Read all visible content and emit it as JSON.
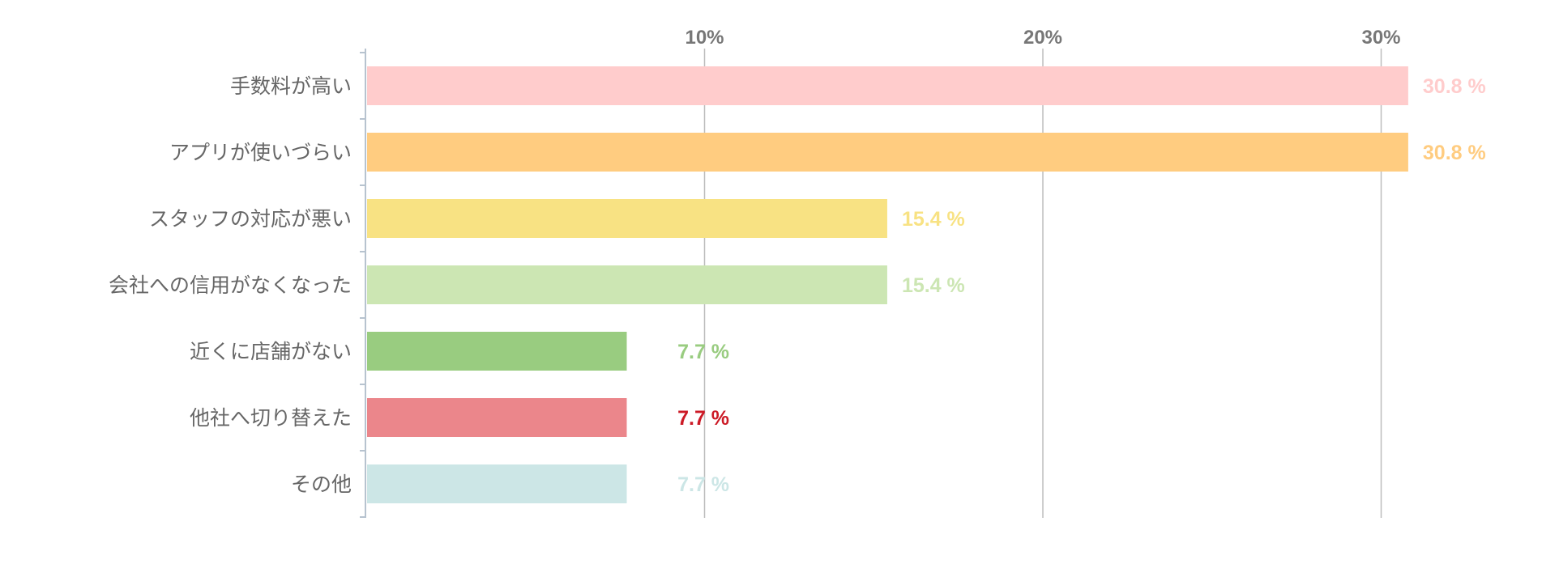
{
  "chart_data": {
    "type": "bar",
    "orientation": "horizontal",
    "categories": [
      "手数料が高い",
      "アプリが使いづらい",
      "スタッフの対応が悪い",
      "会社への信用がなくなった",
      "近くに店舗がない",
      "他社へ切り替えた",
      "その他"
    ],
    "values": [
      30.8,
      30.8,
      15.4,
      15.4,
      7.7,
      7.7,
      7.7
    ],
    "value_labels": [
      "30.8 %",
      "30.8 %",
      "15.4 %",
      "15.4 %",
      "7.7 %",
      "7.7 %",
      "7.7 %"
    ],
    "bar_colors": [
      "#FFCCCC",
      "#FFCC80",
      "#F8E283",
      "#CCE6B3",
      "#99CC80",
      "#EB868B",
      "#CCE6E6"
    ],
    "label_colors": [
      "#FFCCCC",
      "#FFCC80",
      "#F8E283",
      "#CCE6B3",
      "#99CC80",
      "#CC1A26",
      "#CCE6E6"
    ],
    "xticks": [
      10,
      20,
      30
    ],
    "xtick_labels": [
      "10%",
      "20%",
      "30%"
    ],
    "xlim": [
      0,
      33.6
    ],
    "grid": true,
    "axis_position": "top"
  }
}
